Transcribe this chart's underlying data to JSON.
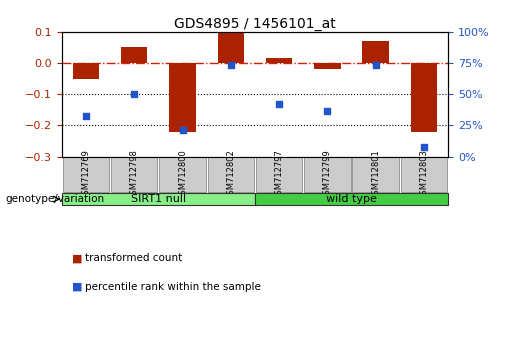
{
  "title": "GDS4895 / 1456101_at",
  "samples": [
    "GSM712769",
    "GSM712798",
    "GSM712800",
    "GSM712802",
    "GSM712797",
    "GSM712799",
    "GSM712801",
    "GSM712803"
  ],
  "bar_values": [
    -0.05,
    0.05,
    -0.22,
    0.095,
    0.015,
    -0.02,
    0.07,
    -0.22
  ],
  "scatter_values": [
    -0.17,
    -0.1,
    -0.215,
    -0.005,
    -0.13,
    -0.155,
    -0.005,
    -0.27
  ],
  "bar_color": "#aa2200",
  "scatter_color": "#2255cc",
  "ylim_left": [
    -0.3,
    0.1
  ],
  "yticks_left": [
    0.1,
    0.0,
    -0.1,
    -0.2,
    -0.3
  ],
  "yticks_right": [
    100,
    75,
    50,
    25,
    0
  ],
  "ylabel_left_color": "#aa2200",
  "ylabel_right_color": "#2255cc",
  "hline_color": "#cc2200",
  "dotted_line_color": "#000000",
  "groups": [
    {
      "label": "SIRT1 null",
      "start": 0,
      "end": 4,
      "color": "#88ee88"
    },
    {
      "label": "wild type",
      "start": 4,
      "end": 8,
      "color": "#44cc44"
    }
  ],
  "genotype_label": "genotype/variation",
  "legend_bar_label": "transformed count",
  "legend_scatter_label": "percentile rank within the sample",
  "title_fontsize": 10,
  "tick_fontsize": 8,
  "bar_width": 0.55
}
